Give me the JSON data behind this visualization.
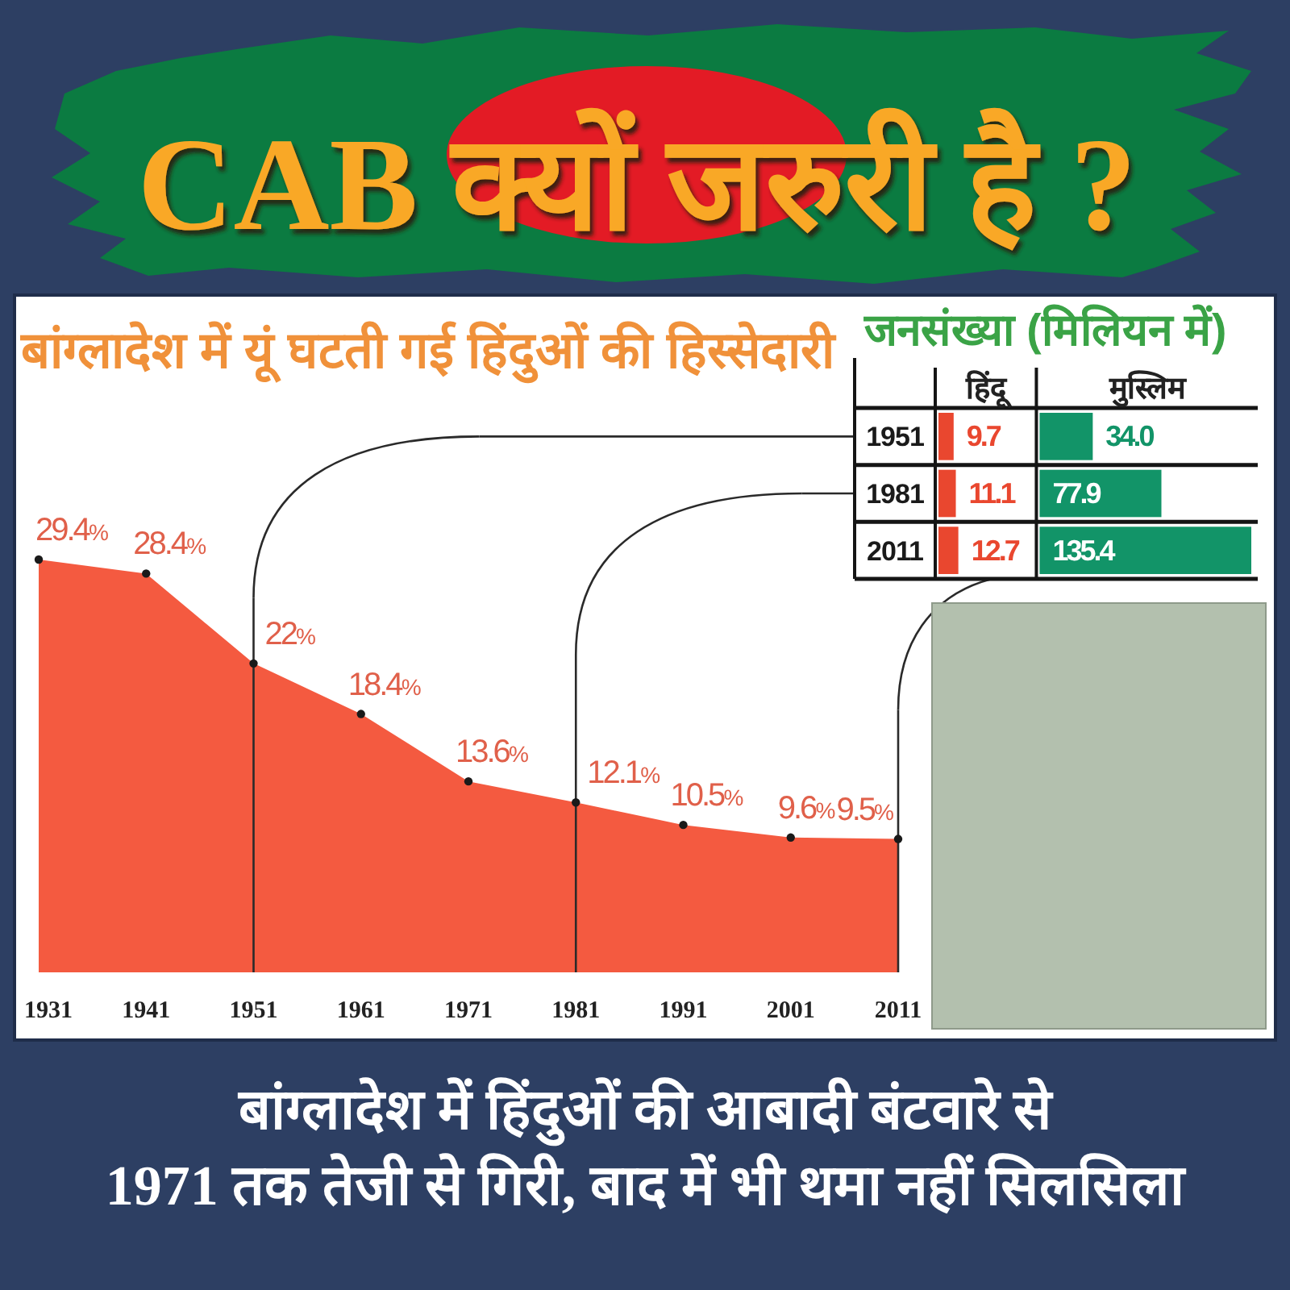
{
  "chart_data": [
    {
      "type": "area",
      "title": "CAB क्यों जरुरी है ?",
      "subtitle": "बांग्लादेश में यूं घटती गई हिंदुओं की हिस्सेदारी",
      "categories": [
        "1931",
        "1941",
        "1951",
        "1961",
        "1971",
        "1981",
        "1991",
        "2001",
        "2011"
      ],
      "values": [
        29.4,
        28.4,
        22,
        18.4,
        13.6,
        12.1,
        10.5,
        9.6,
        9.5
      ],
      "value_labels": [
        "29.4%",
        "28.4%",
        "22%",
        "18.4%",
        "13.6%",
        "12.1%",
        "10.5%",
        "9.6%",
        "9.5%"
      ],
      "color": "#f45a40",
      "marker": "circle",
      "tick_labels": "x",
      "ref_lines": [
        {
          "axis": "x",
          "value": "1951",
          "color": "#2a2a2a"
        },
        {
          "axis": "x",
          "value": "1981",
          "color": "#2a2a2a"
        },
        {
          "axis": "x",
          "value": "2011",
          "color": "#2a2a2a"
        }
      ],
      "annotations": [
        "बांग्लादेश में हिंदुओं की आबादी बंटवारे से 1971 तक तेजी से गिरी, बाद में भी थमा नहीं सिलसिला"
      ]
    },
    {
      "type": "bar",
      "orientation": "horizontal",
      "title": "जनसंख्या (मिलियन में)",
      "categories": [
        "1951",
        "1981",
        "2011"
      ],
      "series": [
        {
          "name": "हिंदू",
          "color": "#e9472f",
          "values": [
            9.7,
            11.1,
            12.7
          ],
          "value_labels": [
            "9.7",
            "11.1",
            "12.7"
          ]
        }
      ],
      "tick_labels": "y"
    },
    {
      "type": "bar",
      "orientation": "horizontal",
      "categories": [
        "1951",
        "1981",
        "2011"
      ],
      "series": [
        {
          "name": "मुस्लिम",
          "color": "#129468",
          "values": [
            34.0,
            77.9,
            135.4
          ],
          "value_labels": [
            "34.0",
            "77.9",
            "135.4"
          ]
        }
      ],
      "tick_labels": false
    }
  ]
}
